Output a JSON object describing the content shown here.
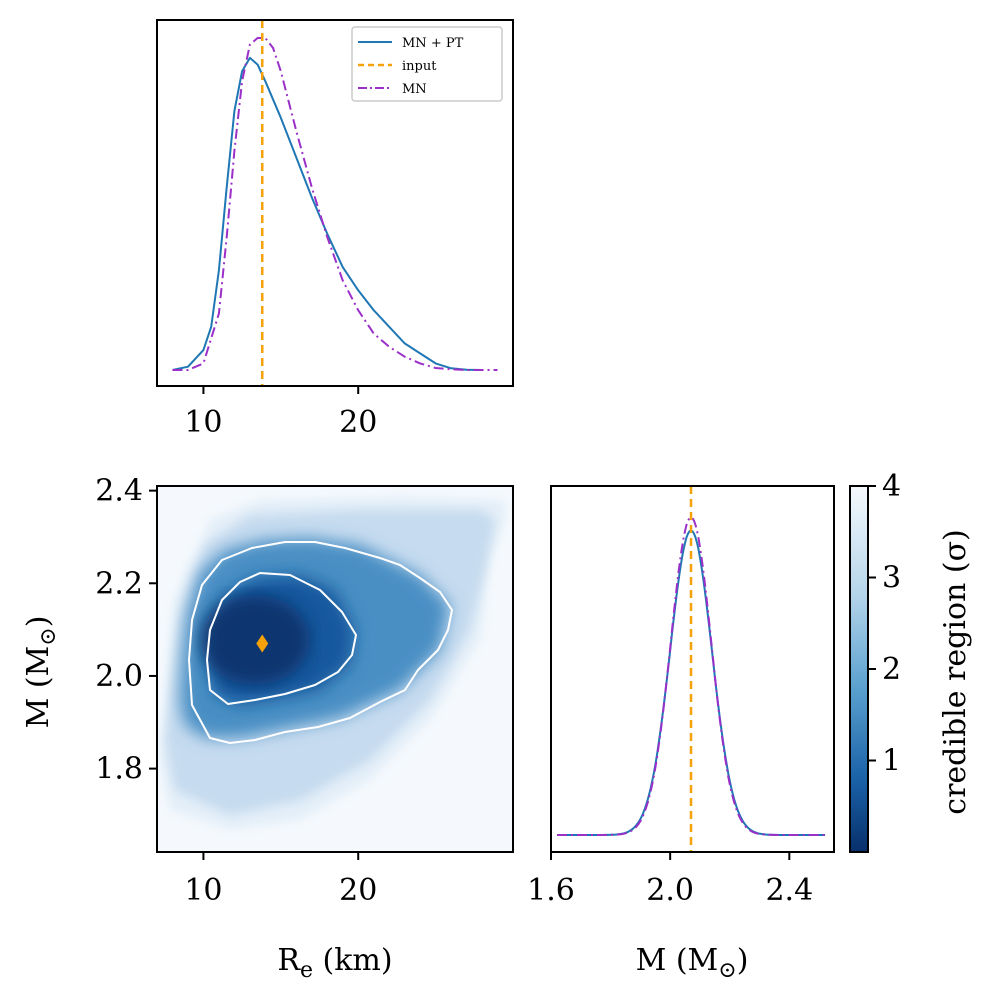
{
  "chart_data": [
    {
      "panel": "top-left",
      "type": "line",
      "xlabel": "",
      "ylabel": "",
      "xlim": [
        7,
        30
      ],
      "xticks": [
        "10",
        "20"
      ],
      "xtick_values": [
        10,
        20
      ],
      "input_line": 13.8,
      "legend": {
        "placement": "top-right",
        "entries": [
          {
            "label": "MN + PT",
            "color": "#1f77b4",
            "style": "solid"
          },
          {
            "label": "input",
            "color": "#f5a10a",
            "style": "dashed"
          },
          {
            "label": "MN",
            "color": "#9b30c9",
            "style": "dashdot"
          }
        ]
      },
      "series": [
        {
          "name": "MN + PT",
          "color": "#1f77b4",
          "style": "solid",
          "x": [
            8,
            9,
            10,
            10.5,
            11,
            11.5,
            12,
            12.5,
            13,
            13.5,
            14,
            15,
            16,
            17,
            18,
            19,
            20,
            21,
            22,
            23,
            24,
            25,
            26,
            27,
            28
          ],
          "y": [
            0,
            0.01,
            0.06,
            0.13,
            0.3,
            0.55,
            0.78,
            0.9,
            0.94,
            0.92,
            0.87,
            0.76,
            0.64,
            0.52,
            0.41,
            0.31,
            0.24,
            0.18,
            0.13,
            0.08,
            0.05,
            0.02,
            0.005,
            0.001,
            0
          ]
        },
        {
          "name": "MN",
          "color": "#9b30c9",
          "style": "dashdot",
          "x": [
            8,
            9,
            10,
            11,
            11.5,
            12,
            12.5,
            13,
            13.5,
            14,
            14.5,
            15,
            16,
            17,
            18,
            19,
            20,
            21,
            22,
            23,
            24,
            25,
            26,
            27,
            28,
            29
          ],
          "y": [
            0,
            0,
            0.02,
            0.17,
            0.4,
            0.66,
            0.87,
            0.98,
            1.0,
            1.0,
            0.97,
            0.9,
            0.72,
            0.55,
            0.4,
            0.27,
            0.18,
            0.11,
            0.07,
            0.04,
            0.02,
            0.006,
            0.002,
            0,
            0,
            0
          ]
        }
      ]
    },
    {
      "panel": "bottom-left",
      "type": "heatmap",
      "xlabel": "R_e (km)",
      "ylabel": "M (M_sun)",
      "xlim": [
        7,
        30
      ],
      "ylim": [
        1.62,
        2.41
      ],
      "xticks": [
        "10",
        "20"
      ],
      "xtick_values": [
        10,
        20
      ],
      "yticks": [
        "1.8",
        "2.0",
        "2.2",
        "2.4"
      ],
      "ytick_values": [
        1.8,
        2.0,
        2.2,
        2.4
      ],
      "colormap": "Blues_r",
      "peak": {
        "x": 13.8,
        "y": 2.07,
        "color": "#f5a10a"
      },
      "contours": [
        "1 sigma",
        "2 sigma"
      ]
    },
    {
      "panel": "bottom-right",
      "type": "line",
      "xlabel": "M (M_sun)",
      "ylabel": "",
      "xlim": [
        1.6,
        2.55
      ],
      "xticks": [
        "1.6",
        "2.0",
        "2.4"
      ],
      "xtick_values": [
        1.6,
        2.0,
        2.4
      ],
      "input_line": 2.07,
      "series": [
        {
          "name": "MN + PT",
          "color": "#1f77b4",
          "style": "solid",
          "mean": 2.07,
          "sigma": 0.07,
          "peak": 0.92,
          "range": [
            1.62,
            2.52
          ]
        },
        {
          "name": "MN",
          "color": "#9b30c9",
          "style": "dashdot",
          "mean": 2.07,
          "sigma": 0.068,
          "peak": 0.96,
          "range": [
            1.62,
            2.52
          ]
        }
      ]
    }
  ],
  "colorbar": {
    "label": "credible region (σ)",
    "ticks": [
      "1",
      "2",
      "3",
      "4"
    ],
    "tick_values": [
      1,
      2,
      3,
      4
    ],
    "range": [
      0,
      4
    ]
  },
  "labels": {
    "x_bottom_left_main": "R",
    "x_bottom_left_sub": "e",
    "x_bottom_left_unit": " (km)",
    "y_bottom_left_main": "M (M",
    "y_bottom_left_sub": "⊙",
    "y_bottom_left_end": ")",
    "x_bottom_right_main": "M (M",
    "x_bottom_right_sub": "⊙",
    "x_bottom_right_end": ")"
  },
  "colors": {
    "blue": "#1f77b4",
    "orange": "#f5a10a",
    "purple": "#9b30c9"
  }
}
